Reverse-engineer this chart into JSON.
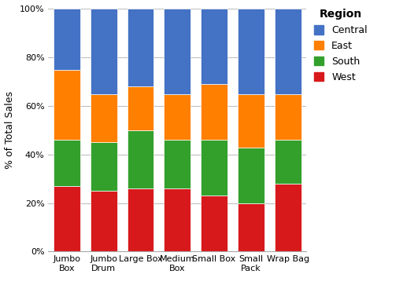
{
  "categories": [
    "Jumbo\nBox",
    "Jumbo\nDrum",
    "Large Box",
    "Medium\nBox",
    "Small Box",
    "Small\nPack",
    "Wrap Bag"
  ],
  "regions": [
    "West",
    "South",
    "East",
    "Central"
  ],
  "colors": {
    "West": "#D7191C",
    "South": "#33A02C",
    "East": "#FF7F00",
    "Central": "#4472C4"
  },
  "values": {
    "West": [
      0.27,
      0.25,
      0.26,
      0.26,
      0.23,
      0.2,
      0.28
    ],
    "South": [
      0.19,
      0.2,
      0.24,
      0.2,
      0.23,
      0.23,
      0.18
    ],
    "East": [
      0.29,
      0.2,
      0.18,
      0.19,
      0.23,
      0.22,
      0.19
    ],
    "Central": [
      0.25,
      0.35,
      0.32,
      0.35,
      0.31,
      0.35,
      0.35
    ]
  },
  "ylabel": "% of Total Sales",
  "legend_title": "Region",
  "background_color": "#FFFFFF",
  "plot_bg_color": "#FFFFFF",
  "grid_color": "#C0C0C0",
  "bar_width": 0.72,
  "yticks": [
    0.0,
    0.2,
    0.4,
    0.6,
    0.8,
    1.0
  ],
  "ytick_labels": [
    "0%",
    "20%",
    "40%",
    "60%",
    "80%",
    "100%"
  ],
  "legend_order": [
    "Central",
    "East",
    "South",
    "West"
  ],
  "figsize": [
    5.12,
    3.77
  ],
  "dpi": 100
}
